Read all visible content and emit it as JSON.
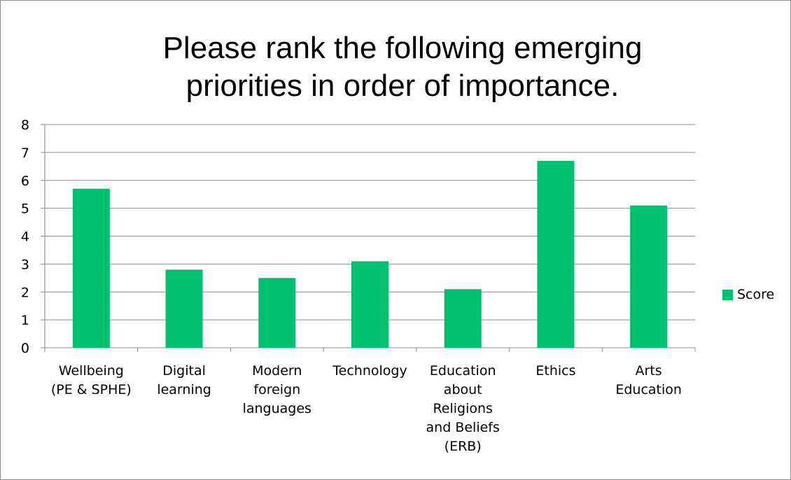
{
  "chart_data": {
    "type": "bar",
    "title": "Please rank the following emerging\npriorities in order of importance.",
    "categories": [
      [
        "Wellbeing",
        "(PE & SPHE)"
      ],
      [
        "Digital",
        "learning"
      ],
      [
        "Modern",
        "foreign",
        "languages"
      ],
      [
        "Technology"
      ],
      [
        "Education",
        "about",
        "Religions",
        "and Beliefs",
        "(ERB)"
      ],
      [
        "Ethics"
      ],
      [
        "Arts",
        "Education"
      ]
    ],
    "series": [
      {
        "name": "Score",
        "values": [
          5.7,
          2.8,
          2.5,
          3.1,
          2.1,
          6.7,
          5.1
        ]
      }
    ],
    "ylim": [
      0,
      8
    ],
    "yticks": [
      "0",
      "1",
      "2",
      "3",
      "4",
      "5",
      "6",
      "7",
      "8"
    ],
    "grid": true,
    "legend_position": "right",
    "colors": {
      "bar": "#00bf6f",
      "grid": "#8c8c8c",
      "axis": "#8c8c8c"
    }
  }
}
